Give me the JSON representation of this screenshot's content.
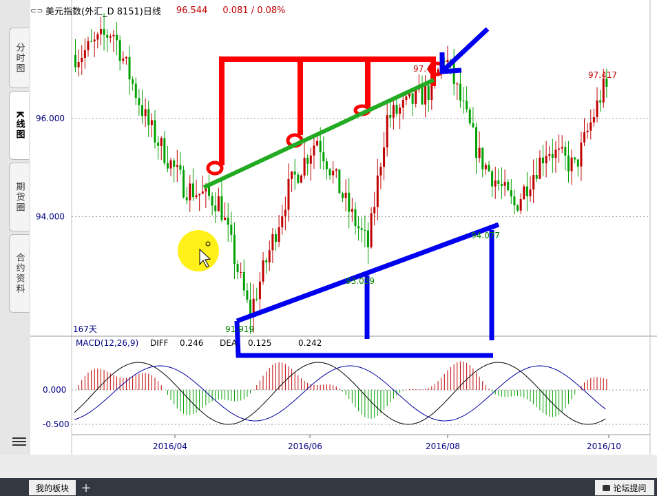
{
  "header": {
    "title": "美元指数(外汇_D 8151)日线",
    "price": "96.544",
    "change": "0.081 / 0.08%"
  },
  "sidebar": {
    "tabs": [
      {
        "label": "分时图",
        "active": false
      },
      {
        "label": "K线图",
        "active": true
      },
      {
        "label": "期货圈",
        "active": false
      },
      {
        "label": "合约资料",
        "active": false
      }
    ]
  },
  "chart_data": {
    "type": "candlestick",
    "price_axis": {
      "ticks": [
        "96.000",
        "94.000"
      ],
      "tick_values": [
        96,
        94
      ],
      "range": [
        91.6,
        98.0
      ]
    },
    "date_axis": {
      "labels": [
        "2016/04",
        "2016/06",
        "2016/08",
        "2016/10"
      ]
    },
    "period_label": "167天",
    "annotations": [
      {
        "label": "97.4",
        "value": 97.4
      },
      {
        "label": "97.417",
        "value": 97.417
      },
      {
        "label": "94.077",
        "value": 94.077
      },
      {
        "label": "93.039",
        "value": 93.039
      },
      {
        "label": "91.919",
        "value": 91.919
      }
    ],
    "anchor_points": [
      {
        "date": "2016-02-20",
        "close": 97.3
      },
      {
        "date": "2016-03-05",
        "close": 97.8
      },
      {
        "date": "2016-03-20",
        "close": 95.9
      },
      {
        "date": "2016-04-05",
        "close": 94.6
      },
      {
        "date": "2016-04-20",
        "close": 94.3
      },
      {
        "date": "2016-05-03",
        "close": 92.0
      },
      {
        "date": "2016-05-20",
        "close": 94.6
      },
      {
        "date": "2016-06-01",
        "close": 95.6
      },
      {
        "date": "2016-06-15",
        "close": 94.1
      },
      {
        "date": "2016-06-23",
        "close": 93.4
      },
      {
        "date": "2016-07-01",
        "close": 96.0
      },
      {
        "date": "2016-07-20",
        "close": 96.6
      },
      {
        "date": "2016-07-26",
        "close": 97.3
      },
      {
        "date": "2016-08-10",
        "close": 95.2
      },
      {
        "date": "2016-08-25",
        "close": 94.2
      },
      {
        "date": "2016-09-08",
        "close": 95.4
      },
      {
        "date": "2016-09-20",
        "close": 95.0
      },
      {
        "date": "2016-10-02",
        "close": 96.6
      }
    ],
    "macd": {
      "label": "MACD(12,26,9)",
      "diff_label": "DIFF",
      "diff": "0.246",
      "dea_label": "DEA",
      "dea": "0.125",
      "macd_value": "0.242",
      "ticks": [
        "0.000",
        "-0.500"
      ],
      "tick_values": [
        0,
        -0.5
      ]
    },
    "colors": {
      "up": "#c00000",
      "down": "#00a000",
      "diff": "#000000",
      "dea": "#0000a0"
    }
  },
  "drawings": {
    "colors": {
      "red": "#ff0000",
      "green": "#22aa22",
      "blue": "#0000ee",
      "cursor": "#ffee00"
    }
  },
  "bottom": {
    "my_sector": "我的板块",
    "add": "+",
    "forum": "论坛提问"
  }
}
